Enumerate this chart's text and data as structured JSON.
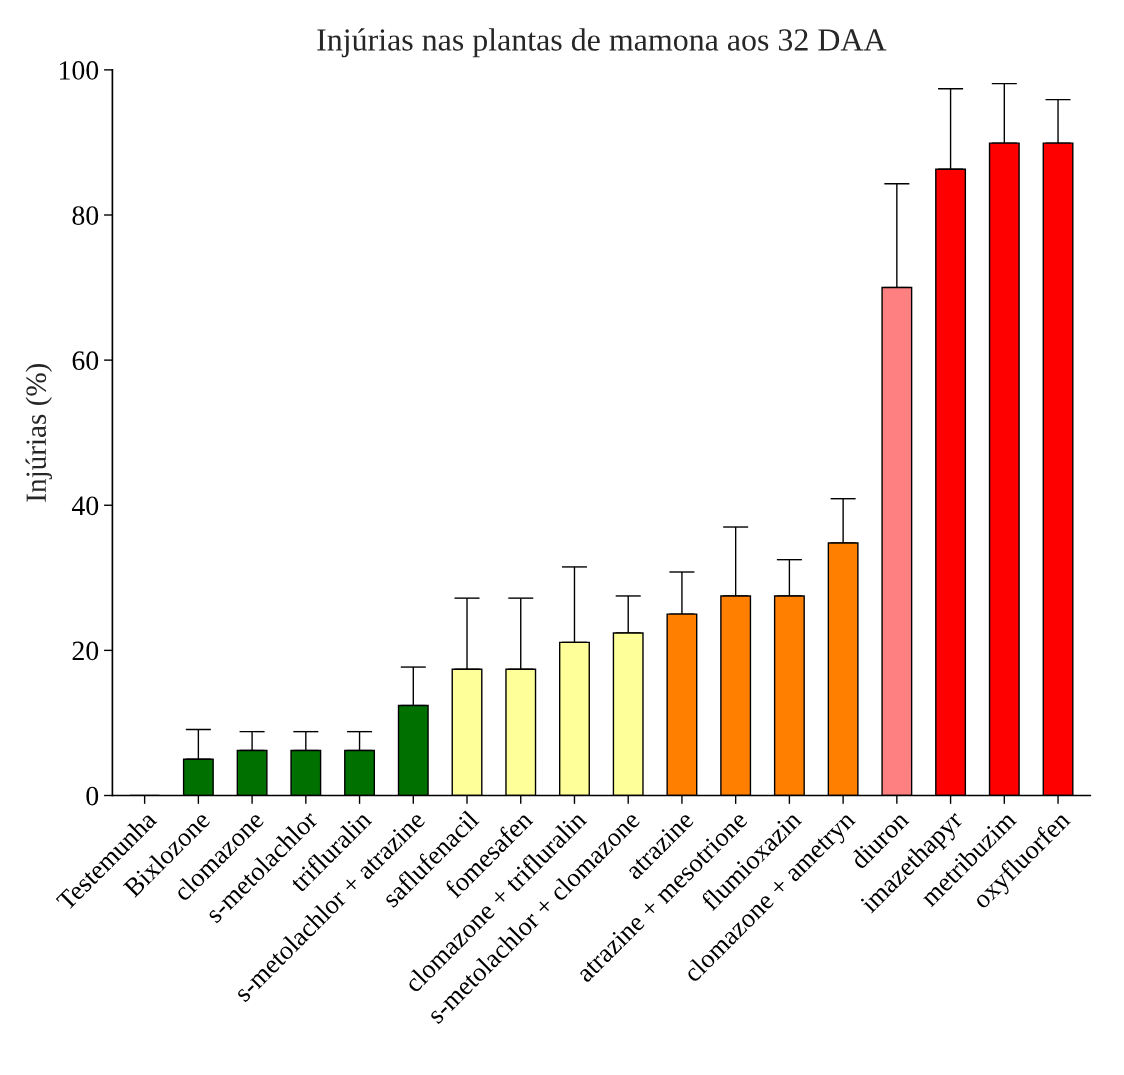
{
  "chart_data": {
    "type": "bar",
    "title": "Injúrias nas plantas de mamona aos 32 DAA",
    "ylabel": "Injúrias (%)",
    "categories": [
      "Testemunha",
      "Bixlozone",
      "clomazone",
      "s-metolachlor",
      "trifluralin",
      "s-metolachlor + atrazine",
      "saflufenacil",
      "fomesafen",
      "clomazone + trifluralin",
      "s-metolachlor + clomazone",
      "atrazine",
      "atrazine + mesotrione",
      "flumioxazin",
      "clomazone + ametryn",
      "diuron",
      "imazethapyr",
      "metribuzim",
      "oxyfluorfen"
    ],
    "values": [
      0,
      5.0,
      6.2,
      6.2,
      6.2,
      12.4,
      17.4,
      17.4,
      21.1,
      22.4,
      25.0,
      27.5,
      27.5,
      34.8,
      70.0,
      86.3,
      89.9,
      89.9
    ],
    "errors": [
      null,
      [
        5.0,
        9.1
      ],
      [
        6.2,
        8.8
      ],
      [
        6.2,
        8.8
      ],
      [
        6.2,
        8.8
      ],
      [
        12.4,
        17.7
      ],
      [
        17.4,
        27.2
      ],
      [
        17.4,
        27.2
      ],
      [
        21.1,
        31.5
      ],
      [
        22.4,
        27.5
      ],
      [
        25.0,
        30.8
      ],
      [
        27.5,
        37.0
      ],
      [
        27.5,
        32.5
      ],
      [
        34.8,
        40.9
      ],
      [
        70.0,
        84.3
      ],
      [
        86.3,
        97.4
      ],
      [
        89.9,
        98.1
      ],
      [
        89.9,
        95.9
      ]
    ],
    "colors": [
      "#007000",
      "#007000",
      "#007000",
      "#007000",
      "#007000",
      "#007000",
      "#ffff99",
      "#ffff99",
      "#ffff99",
      "#ffff99",
      "#ff8000",
      "#ff8000",
      "#ff8000",
      "#ff8000",
      "#ff8080",
      "#ff0000",
      "#ff0000",
      "#ff0000"
    ],
    "ylim": [
      0,
      100
    ],
    "yticks": [
      0,
      20,
      40,
      60,
      80,
      100
    ],
    "grid": false
  }
}
